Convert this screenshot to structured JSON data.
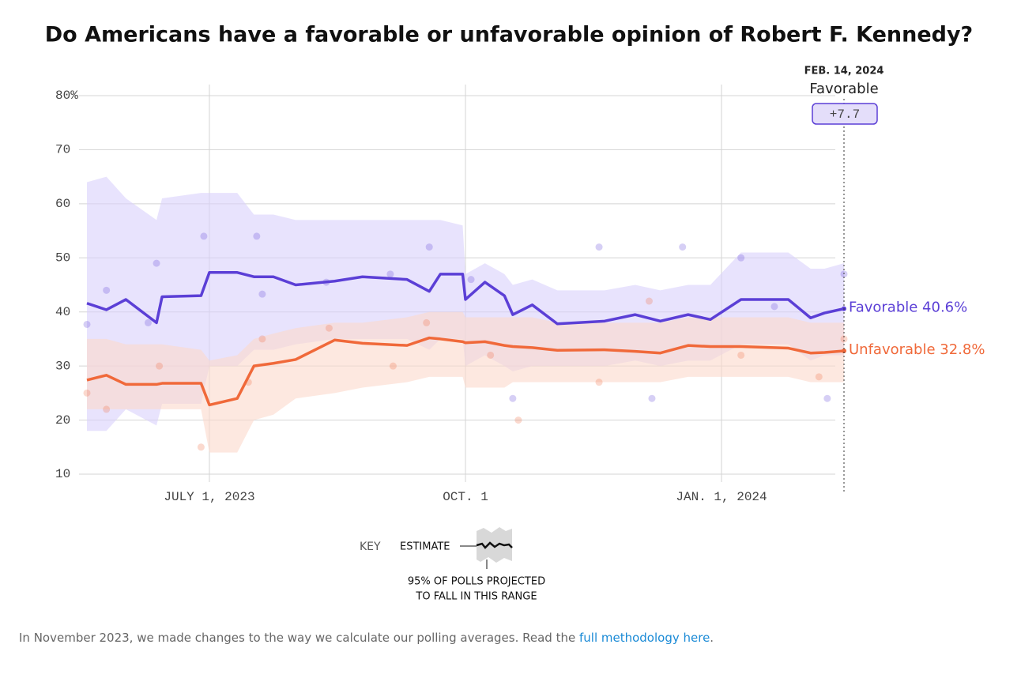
{
  "chart_data": {
    "type": "line",
    "title": "Do Americans have a favorable or unfavorable opinion of Robert F. Kennedy?",
    "x": [
      "2023-05-18",
      "2023-05-25",
      "2023-06-01",
      "2023-06-12",
      "2023-06-14",
      "2023-06-28",
      "2023-07-01",
      "2023-07-11",
      "2023-07-17",
      "2023-07-24",
      "2023-08-01",
      "2023-08-15",
      "2023-08-25",
      "2023-09-10",
      "2023-09-18",
      "2023-09-22",
      "2023-09-30",
      "2023-10-01",
      "2023-10-08",
      "2023-10-15",
      "2023-10-18",
      "2023-10-25",
      "2023-11-03",
      "2023-11-20",
      "2023-12-01",
      "2023-12-10",
      "2023-12-20",
      "2023-12-28",
      "2024-01-08",
      "2024-01-25",
      "2024-02-02",
      "2024-02-07",
      "2024-02-14"
    ],
    "xlim": [
      "2023-05-18",
      "2024-02-14"
    ],
    "xticks": [
      {
        "value": "2023-07-01",
        "label": "JULY 1, 2023"
      },
      {
        "value": "2023-10-01",
        "label": "OCT. 1"
      },
      {
        "value": "2024-01-01",
        "label": "JAN. 1, 2024"
      }
    ],
    "ylim": [
      10,
      80
    ],
    "yticks": [
      10,
      20,
      30,
      40,
      50,
      60,
      70,
      {
        "value": 80,
        "label": "80%"
      }
    ],
    "grid": true,
    "series": [
      {
        "label": "Favorable 40.6%",
        "color": "#5b3fd6",
        "band_color": "#d9d0fb",
        "values": [
          41.6,
          40.4,
          42.3,
          38,
          42.8,
          43,
          47.3,
          47.3,
          46.5,
          46.5,
          45,
          45.7,
          46.5,
          46,
          43.8,
          47,
          47,
          42.3,
          45.5,
          43,
          39.5,
          41.3,
          37.8,
          38.3,
          39.5,
          38.3,
          39.5,
          38.6,
          42.3,
          42.3,
          38.9,
          39.8,
          40.6
        ],
        "band_high": [
          64,
          65,
          61,
          57,
          61,
          62,
          62,
          62,
          58,
          58,
          57,
          57,
          57,
          57,
          57,
          57,
          56,
          47,
          49,
          47,
          45,
          46,
          44,
          44,
          45,
          44,
          45,
          45,
          51,
          51,
          48,
          48,
          49
        ],
        "band_low": [
          18,
          18,
          22,
          19,
          23,
          23,
          30,
          30,
          33,
          33,
          34,
          35,
          35,
          35,
          33,
          35,
          35,
          30,
          32,
          30,
          29,
          30,
          30,
          30,
          31,
          30,
          31,
          31,
          34,
          34,
          31,
          32,
          32
        ],
        "polls_x": [
          "2023-05-18",
          "2023-05-25",
          "2023-06-09",
          "2023-06-12",
          "2023-06-29",
          "2023-07-18",
          "2023-07-20",
          "2023-08-12",
          "2023-09-04",
          "2023-09-18",
          "2023-10-03",
          "2023-10-18",
          "2023-11-18",
          "2023-12-07",
          "2023-12-18",
          "2024-01-08",
          "2024-01-20",
          "2024-02-08",
          "2024-02-14"
        ],
        "polls": [
          37.7,
          44,
          38,
          49,
          54,
          54,
          43.3,
          45.5,
          47,
          52,
          46,
          24,
          52,
          24,
          52,
          50,
          41,
          24,
          47
        ]
      },
      {
        "label": "Unfavorable 32.8%",
        "color": "#f0693a",
        "band_color": "#fcd9cb",
        "values": [
          27.4,
          28.3,
          26.6,
          26.6,
          26.8,
          26.8,
          22.8,
          24,
          30,
          30.5,
          31.2,
          34.8,
          34.2,
          33.8,
          35.2,
          35,
          34.5,
          34.3,
          34.5,
          33.8,
          33.6,
          33.4,
          32.9,
          33,
          32.7,
          32.4,
          33.8,
          33.6,
          33.6,
          33.3,
          32.4,
          32.5,
          32.8
        ],
        "band_high": [
          35,
          35,
          34,
          34,
          34,
          33,
          31,
          32,
          35,
          36,
          37,
          38,
          38,
          39,
          40,
          40,
          40,
          39,
          39,
          39,
          39,
          39,
          38,
          38,
          38,
          38,
          39,
          39,
          39,
          39,
          38,
          38,
          38
        ],
        "band_low": [
          22,
          22,
          22,
          22,
          22,
          22,
          14,
          14,
          20,
          21,
          24,
          25,
          26,
          27,
          28,
          28,
          28,
          26,
          26,
          26,
          27,
          27,
          27,
          27,
          27,
          27,
          28,
          28,
          28,
          28,
          27,
          27,
          27
        ],
        "polls_x": [
          "2023-05-18",
          "2023-05-25",
          "2023-06-13",
          "2023-06-28",
          "2023-07-15",
          "2023-07-20",
          "2023-08-13",
          "2023-09-05",
          "2023-09-17",
          "2023-10-10",
          "2023-10-20",
          "2023-11-18",
          "2023-12-06",
          "2024-01-08",
          "2024-02-05",
          "2024-02-14"
        ],
        "polls": [
          25,
          22,
          30,
          15,
          27,
          35,
          37,
          30,
          38,
          32,
          20,
          27,
          42,
          32,
          28,
          35
        ]
      }
    ],
    "annotation": {
      "date": "FEB. 14, 2024",
      "label": "Favorable",
      "value": "+7.7"
    },
    "key": {
      "title": "KEY",
      "estimate": "ESTIMATE",
      "range_1": "95% OF POLLS PROJECTED",
      "range_2": "TO FALL IN THIS RANGE"
    },
    "footer": {
      "text": "In November 2023, we made changes to the way we calculate our polling averages. Read the ",
      "link": "full methodology here",
      "end": "."
    }
  }
}
